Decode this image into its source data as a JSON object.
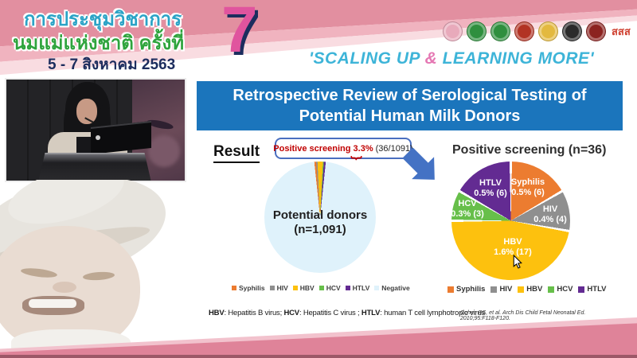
{
  "header": {
    "title_line1": "การประชุมวิชาการ",
    "title_line2": "นมแม่แห่งชาติ ครั้งที่",
    "title_line3": "5 - 7 สิงหาคม 2563",
    "edition_number": "7",
    "tagline_part1": "'SCALING UP ",
    "tagline_amp": "&",
    "tagline_part2": " LEARNING MORE'",
    "sss_label": "สสส",
    "logos": [
      {
        "name": "mother-and-child-logo",
        "color": "#e8aabb"
      },
      {
        "name": "green-medical-emblem-logo-1",
        "color": "#2f8f3e"
      },
      {
        "name": "green-medical-emblem-logo-2",
        "color": "#2f8f3e"
      },
      {
        "name": "temple-emblem-logo",
        "color": "#b23324"
      },
      {
        "name": "gold-crest-logo",
        "color": "#e3b93f"
      },
      {
        "name": "black-crest-logo",
        "color": "#2b2b2b"
      },
      {
        "name": "red-crest-logo",
        "color": "#8c2320"
      }
    ],
    "colors": {
      "band_dark": "#e28fa0",
      "band_mid": "#f0b3bf",
      "band_light": "#f9dce1",
      "title_teal": "#2ba3c6",
      "title_green": "#2fa43d",
      "date_navy": "#1c2d5e",
      "seven_pink": "#e0549e",
      "tagline_blue": "#3db4d8",
      "amp_pink": "#e577b3"
    }
  },
  "slide": {
    "title_line1": "Retrospective Review of Serological Testing of",
    "title_line2": "Potential Human Milk Donors",
    "title_bg": "#1b75bc",
    "result_label": "Result",
    "callout": {
      "highlight": "Positive screening 3.3%",
      "detail": "(36/1091)"
    },
    "footnote_parts": [
      {
        "text": "HBV",
        "bold": true
      },
      {
        "text": ": Hepatitis B virus; ",
        "bold": false
      },
      {
        "text": "HCV",
        "bold": true
      },
      {
        "text": ": Hepatitis C virus ; ",
        "bold": false
      },
      {
        "text": "HTLV",
        "bold": true
      },
      {
        "text": ": human T cell lymphotropic virus",
        "bold": false
      }
    ],
    "citation": "Cohen RS, et al. Arch Dis Child Fetal Neonatal Ed. 2010;95:F118-F120."
  },
  "chart_data": [
    {
      "type": "pie",
      "title": "Potential donors (n=1,091)",
      "center_label": {
        "line1": "Potential donors",
        "line2": "(n=1,091)"
      },
      "total": 1091,
      "rotation_deg": -6,
      "slice_gap_deg": 0,
      "legend_position": "bottom",
      "slices": [
        {
          "name": "Syphilis",
          "value": 6,
          "color": "#ec7c30"
        },
        {
          "name": "HIV",
          "value": 4,
          "color": "#8f8f8f"
        },
        {
          "name": "HBV",
          "value": 17,
          "color": "#fdc10e"
        },
        {
          "name": "HCV",
          "value": 3,
          "color": "#67bf4a"
        },
        {
          "name": "HTLV",
          "value": 6,
          "color": "#632b92"
        },
        {
          "name": "Negative",
          "value": 1055,
          "color": "#dff2fb"
        }
      ]
    },
    {
      "type": "pie",
      "title": "Positive screening (n=36)",
      "total": 36,
      "rotation_deg": 0,
      "slice_gap_deg": 2.4,
      "legend_position": "bottom",
      "slices": [
        {
          "name": "Syphilis",
          "value": 6,
          "label": "0.5% (6)",
          "color": "#ec7c30"
        },
        {
          "name": "HIV",
          "value": 4,
          "label": "0.4% (4)",
          "color": "#8f8f8f"
        },
        {
          "name": "HBV",
          "value": 17,
          "label": "1.6% (17)",
          "color": "#fdc10e"
        },
        {
          "name": "HCV",
          "value": 3,
          "label": "0.3% (3)",
          "color": "#67bf4a"
        },
        {
          "name": "HTLV",
          "value": 6,
          "label": "0.5% (6)",
          "color": "#632b92"
        }
      ]
    }
  ]
}
